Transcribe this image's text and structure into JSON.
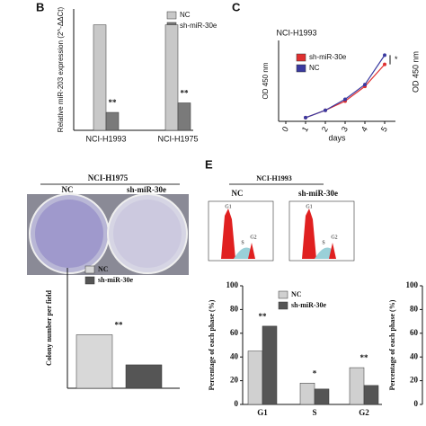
{
  "panels": {
    "b": "B",
    "c": "C",
    "e": "E"
  },
  "partial_labels": {
    "od": "OD 450 nm"
  },
  "colony": {
    "title": "NCI-H1975",
    "plates": [
      "NC",
      "sh-miR-30e"
    ]
  },
  "flow": {
    "title": "NCI-H1993",
    "samples": [
      {
        "name": "NC",
        "peaks": [
          "G1",
          "S",
          "G2"
        ]
      },
      {
        "name": "sh-miR-30e",
        "peaks": [
          "G1",
          "S",
          "G2"
        ]
      }
    ]
  },
  "chart_data": [
    {
      "type": "bar",
      "ylabel": "Relative miR-203 expression (2^-ΔΔCt)",
      "categories": [
        "NCI-H1993",
        "NCI-H1975"
      ],
      "series": [
        {
          "name": "NC",
          "color": "#c8c8c8",
          "values": [
            1,
            1
          ]
        },
        {
          "name": "sh-miR-30e",
          "color": "#7a7a7a",
          "values": [
            0.17,
            0.26
          ]
        }
      ],
      "ylim": [
        0,
        1.15
      ],
      "annotations": [
        "**",
        "**"
      ]
    },
    {
      "type": "line",
      "title": "NCI-H1993",
      "xlabel": "days",
      "ylabel": "OD 450 nm",
      "x": [
        1,
        2,
        3,
        4,
        5
      ],
      "xlim": [
        0,
        5
      ],
      "xticks": [
        0,
        1,
        2,
        3,
        4,
        5
      ],
      "ylim": [
        0,
        2.2
      ],
      "series": [
        {
          "name": "sh-miR-30e",
          "color": "#e03030",
          "values": [
            0.1,
            0.3,
            0.55,
            0.95,
            1.55
          ]
        },
        {
          "name": "NC",
          "color": "#3a3aa0",
          "values": [
            0.1,
            0.3,
            0.6,
            1.0,
            1.8
          ]
        }
      ],
      "annotations": [
        "*"
      ]
    },
    {
      "type": "bar",
      "ylabel": "Colony number per field",
      "categories": [
        null
      ],
      "series": [
        {
          "name": "NC",
          "color": "#d8d8d8",
          "values": [
            800
          ]
        },
        {
          "name": "sh-miR-30e",
          "color": "#555555",
          "values": [
            350
          ]
        }
      ],
      "ylim": [
        0,
        1800
      ],
      "annotations": [
        "**"
      ]
    },
    {
      "type": "bar",
      "ylabel": "Percentage of each phase (%)",
      "categories": [
        "G1",
        "S",
        "G2"
      ],
      "series": [
        {
          "name": "NC",
          "color": "#d0d0d0",
          "values": [
            45,
            18,
            31
          ]
        },
        {
          "name": "sh-miR-30e",
          "color": "#555555",
          "values": [
            66,
            13,
            16
          ]
        }
      ],
      "ylim": [
        0,
        100
      ],
      "yticks": [
        0,
        20,
        40,
        60,
        80,
        100
      ],
      "annotations": [
        "**",
        "*",
        "**"
      ]
    },
    {
      "type": "bar",
      "ylabel": "Percentage of each phase (%)",
      "categories": [],
      "series": [],
      "ylim": [
        0,
        100
      ],
      "yticks": [
        0,
        20,
        40,
        60,
        80,
        100
      ]
    }
  ]
}
